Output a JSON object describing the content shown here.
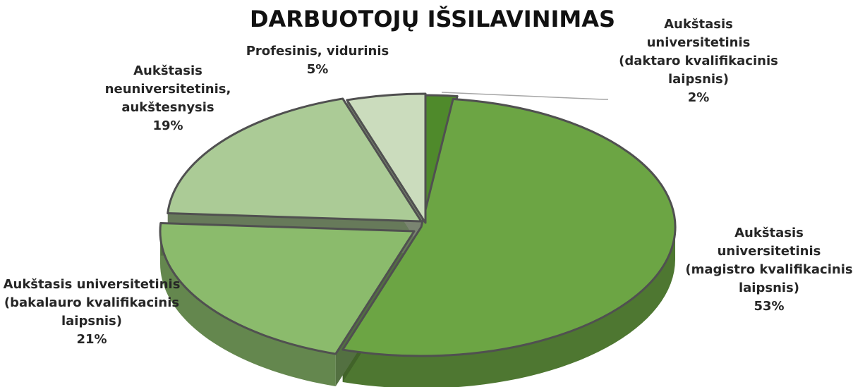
{
  "chart_data": {
    "type": "pie",
    "title": "DARBUOTOJŲ IŠSILAVINIMAS",
    "categories": [
      "Aukštasis universitetinis (daktaro kvalifikacinis laipsnis)",
      "Aukštasis universitetinis (magistro kvalifikacinis laipsnis)",
      "Aukštasis universitetinis (bakalauro kvalifikacinis laipsnis)",
      "Aukštasis neuniversitetinis, aukštesnysis",
      "Profesinis, vidurinis"
    ],
    "values": [
      2,
      53,
      21,
      19,
      5
    ],
    "value_labels": [
      "2%",
      "53%",
      "21%",
      "19%",
      "5%"
    ],
    "colors": [
      "#4f8a2b",
      "#6ca544",
      "#8bbb6c",
      "#abcb96",
      "#cbdcbd"
    ]
  }
}
